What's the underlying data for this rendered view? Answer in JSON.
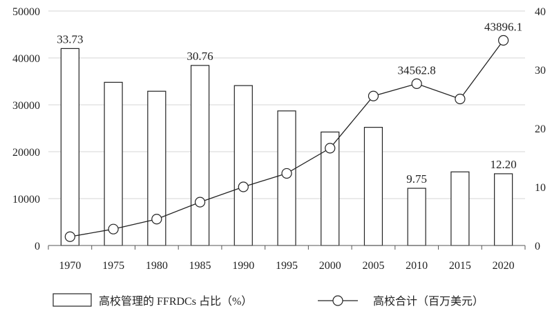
{
  "chart_data": {
    "type": "bar+line",
    "categories": [
      "1970",
      "1975",
      "1980",
      "1985",
      "1990",
      "1995",
      "2000",
      "2005",
      "2010",
      "2015",
      "2020"
    ],
    "series": [
      {
        "name": "高校管理的 FFRDCs 占比（%）",
        "type": "bar",
        "axis": "left",
        "values": [
          42000,
          34800,
          32900,
          38400,
          34100,
          28700,
          24200,
          25200,
          12200,
          15700,
          15300
        ],
        "data_labels": {
          "0": "33.73",
          "3": "30.76",
          "8": "9.75",
          "10": "12.20"
        }
      },
      {
        "name": "高校合计（百万美元）",
        "type": "line",
        "axis": "right",
        "values": [
          1.5,
          2.8,
          4.5,
          7.4,
          10.0,
          12.3,
          16.6,
          25.5,
          27.6,
          25.0,
          35.0
        ],
        "data_labels": {
          "8": "34562.8",
          "10": "43896.1"
        }
      }
    ],
    "y_left": {
      "min": 0,
      "max": 50000,
      "ticks": [
        "0",
        "10000",
        "20000",
        "30000",
        "40000",
        "50000"
      ]
    },
    "y_right": {
      "min": 0,
      "max": 40,
      "ticks": [
        "0",
        "10",
        "20",
        "30",
        "40"
      ]
    },
    "title": "",
    "xlabel": "",
    "ylabel": "",
    "grid": true,
    "legend_position": "bottom",
    "colors": {
      "bar_fill": "#ffffff",
      "bar_stroke": "#222222",
      "line": "#222222",
      "grid": "#d6d6d6"
    }
  },
  "legend": {
    "bar_label_cn1": "高校管理的",
    "bar_label_en": " FFRDCs ",
    "bar_label_cn2": "占比（",
    "bar_label_pct": "%",
    "bar_label_end": "）",
    "line_label": "高校合计（百万美元）"
  }
}
